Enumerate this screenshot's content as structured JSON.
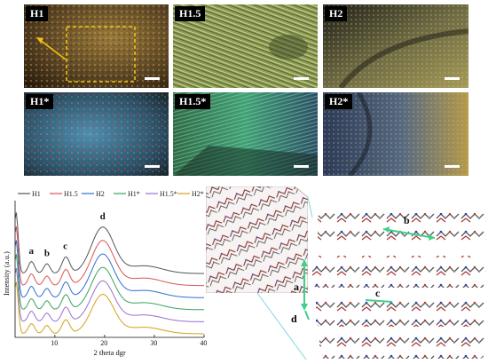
{
  "panels": [
    {
      "id": "H1",
      "label": "H1",
      "tone": "gold"
    },
    {
      "id": "H1.5",
      "label": "H1.5",
      "tone": "green"
    },
    {
      "id": "H2",
      "label": "H2",
      "tone": "dark"
    },
    {
      "id": "H1s",
      "label": "H1*",
      "tone": "blue"
    },
    {
      "id": "H1.5s",
      "label": "H1.5*",
      "tone": "teal"
    },
    {
      "id": "H2s",
      "label": "H2*",
      "tone": "bluegold"
    }
  ],
  "chart_data": {
    "type": "line",
    "xlabel": "2 theta dgr",
    "ylabel": "Intensity (a.u.)",
    "xlim": [
      2,
      40
    ],
    "x_ticks": [
      "10",
      "20",
      "30",
      "40"
    ],
    "series": [
      {
        "name": "H1",
        "color": "#555555",
        "offset": 5.0
      },
      {
        "name": "H1.5",
        "color": "#d9534f",
        "offset": 4.0
      },
      {
        "name": "H2",
        "color": "#2e6fcf",
        "offset": 3.0
      },
      {
        "name": "H1*",
        "color": "#3aa35a",
        "offset": 2.0
      },
      {
        "name": "H1.5*",
        "color": "#9b6fcf",
        "offset": 1.0
      },
      {
        "name": "H2*",
        "color": "#d4a017",
        "offset": 0.0
      }
    ],
    "peaks": [
      {
        "label": "a",
        "x": 5.3
      },
      {
        "label": "b",
        "x": 8.4
      },
      {
        "label": "c",
        "x": 12.2
      },
      {
        "label": "d",
        "x": 19.6
      }
    ]
  },
  "structure_labels": {
    "a": "a",
    "b": "b",
    "c": "c",
    "d": "d"
  }
}
